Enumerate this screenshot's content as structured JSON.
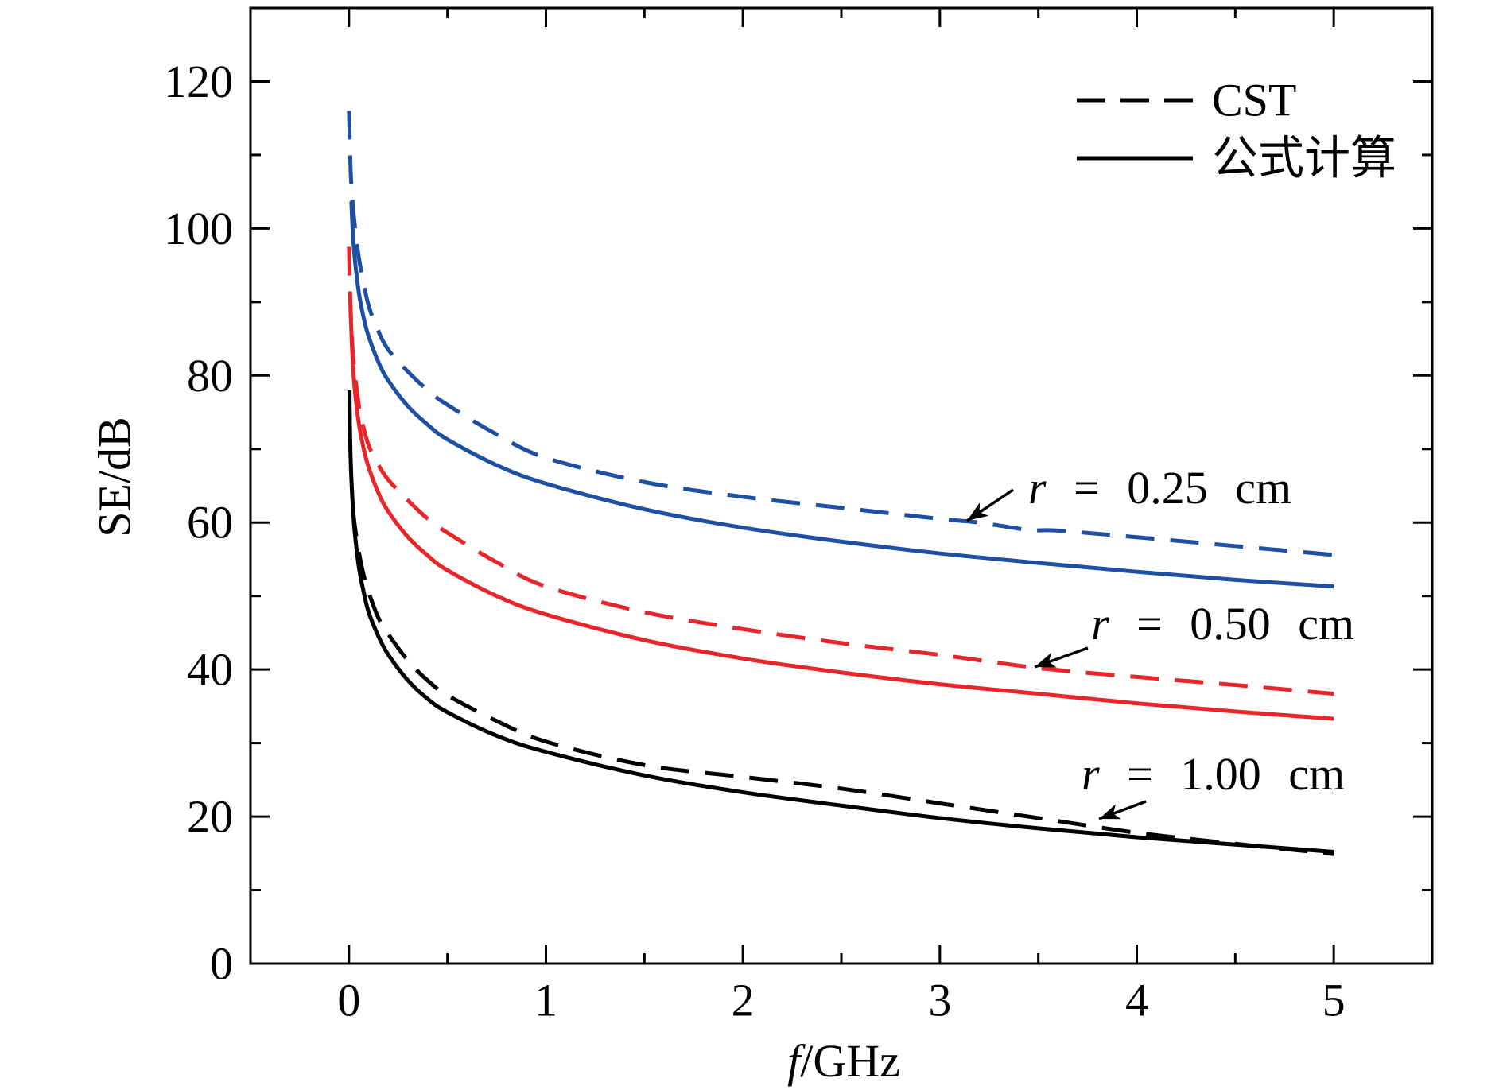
{
  "chart_data": {
    "type": "line",
    "xlabel": "f/GHz",
    "ylabel": "SE/dB",
    "xlim": [
      -0.5,
      5.5
    ],
    "ylim": [
      0,
      130
    ],
    "x_ticks": [
      "0",
      "1",
      "2",
      "3",
      "4",
      "5"
    ],
    "y_ticks": [
      "0",
      "20",
      "40",
      "60",
      "80",
      "100",
      "120"
    ],
    "grid": false,
    "legend": {
      "position": "top-right",
      "entries": [
        {
          "label": "CST",
          "dashed": true,
          "color": "#000000"
        },
        {
          "label": "公式计算",
          "dashed": false,
          "color": "#000000"
        }
      ]
    },
    "annotations": [
      "r = 0.25 cm",
      "r = 0.50 cm",
      "r = 1.00 cm"
    ],
    "series": [
      {
        "legend_entry": 0,
        "annotation": 0,
        "color": "#1f4fa3",
        "dashed": true,
        "x": [
          0,
          0.005,
          0.01,
          0.02,
          0.04,
          0.06,
          0.1,
          0.15,
          0.2,
          0.3,
          0.4,
          0.5,
          0.75,
          1.0,
          1.5,
          2.0,
          2.5,
          3.0,
          3.2,
          3.45,
          3.6,
          4.0,
          4.5,
          5.0
        ],
        "y": [
          116,
          111,
          107,
          103,
          98,
          94.5,
          89.5,
          86,
          83.5,
          80.5,
          78,
          76,
          72,
          68.8,
          65.5,
          63.5,
          62,
          60.5,
          60,
          59,
          58.9,
          58,
          56.8,
          55.6
        ]
      },
      {
        "legend_entry": 1,
        "annotation": 0,
        "color": "#1f4fa3",
        "dashed": false,
        "x": [
          0.012,
          0.02,
          0.03,
          0.05,
          0.075,
          0.1,
          0.15,
          0.2,
          0.3,
          0.4,
          0.5,
          0.75,
          1.0,
          1.5,
          2.0,
          2.5,
          3.0,
          3.5,
          4.0,
          4.5,
          5.0
        ],
        "y": [
          103.7,
          99.3,
          95.8,
          91.3,
          87.8,
          85.3,
          81.8,
          79.3,
          75.8,
          73.3,
          71.3,
          67.8,
          65.3,
          61.8,
          59.3,
          57.4,
          55.8,
          54.5,
          53.3,
          52.2,
          51.3
        ]
      },
      {
        "legend_entry": 0,
        "annotation": 1,
        "color": "#e8252b",
        "dashed": true,
        "x": [
          0,
          0.005,
          0.01,
          0.02,
          0.04,
          0.06,
          0.1,
          0.15,
          0.2,
          0.3,
          0.4,
          0.5,
          0.75,
          1.0,
          1.5,
          2.0,
          2.5,
          3.0,
          3.5,
          4.0,
          4.5,
          5.0
        ],
        "y": [
          97.5,
          92,
          88,
          83,
          78,
          74.5,
          70.5,
          67.8,
          65.8,
          63,
          60.5,
          58.6,
          54.6,
          51.3,
          47.8,
          45.5,
          43.6,
          42,
          40.2,
          39,
          37.9,
          36.7
        ]
      },
      {
        "legend_entry": 1,
        "annotation": 1,
        "color": "#e8252b",
        "dashed": false,
        "x": [
          0.008,
          0.01,
          0.02,
          0.03,
          0.05,
          0.075,
          0.1,
          0.15,
          0.2,
          0.3,
          0.4,
          0.5,
          0.75,
          1.0,
          1.5,
          2.0,
          2.5,
          3.0,
          3.5,
          4.0,
          4.5,
          5.0
        ],
        "y": [
          89.5,
          87.5,
          81.5,
          78,
          73.5,
          70,
          67.5,
          64,
          61.5,
          58,
          55.5,
          53.5,
          50,
          47.5,
          44,
          41.5,
          39.6,
          38,
          36.7,
          35.4,
          34.3,
          33.3
        ]
      },
      {
        "legend_entry": 0,
        "annotation": 2,
        "color": "#000000",
        "dashed": true,
        "x": [
          0.02,
          0.03,
          0.05,
          0.075,
          0.1,
          0.15,
          0.2,
          0.3,
          0.4,
          0.5,
          0.75,
          1.0,
          1.5,
          2.0,
          2.5,
          3.0,
          3.5,
          4.0,
          4.5,
          5.0
        ],
        "y": [
          62,
          59.5,
          56,
          52.8,
          50.5,
          47,
          44.8,
          41.2,
          38.5,
          36.5,
          33,
          30.2,
          27,
          25.4,
          23.8,
          21.8,
          19.8,
          17.8,
          16.3,
          14.9
        ]
      },
      {
        "legend_entry": 1,
        "annotation": 2,
        "color": "#000000",
        "dashed": false,
        "x": [
          0.003,
          0.005,
          0.01,
          0.02,
          0.03,
          0.05,
          0.075,
          0.1,
          0.15,
          0.2,
          0.3,
          0.4,
          0.5,
          0.75,
          1.0,
          1.5,
          2.0,
          2.5,
          3.0,
          3.5,
          4.0,
          4.5,
          5.0
        ],
        "y": [
          78,
          73,
          67.5,
          62,
          58.5,
          54,
          50.5,
          47.8,
          44.5,
          42,
          38.5,
          36,
          34.2,
          31,
          28.8,
          25.6,
          23.3,
          21.5,
          19.8,
          18.4,
          17.2,
          16.2,
          15.2
        ]
      }
    ]
  }
}
